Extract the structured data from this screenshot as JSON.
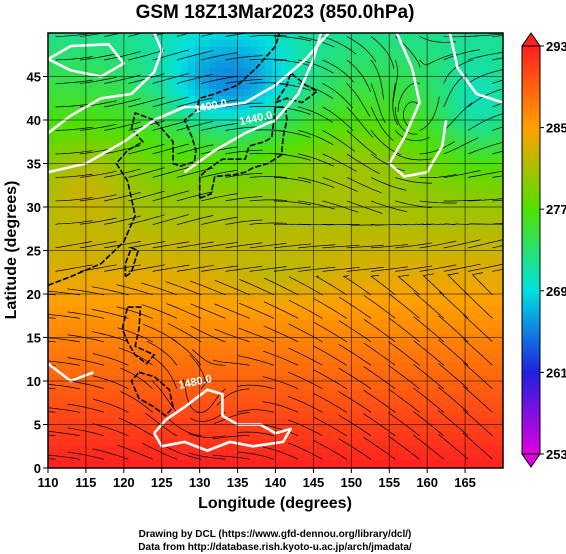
{
  "chart_data": {
    "type": "heatmap",
    "title": "GSM 18Z13Mar2023 (850.0hPa)",
    "xlabel": "Longitude (degrees)",
    "ylabel": "Latitude  (degrees)",
    "xlim": [
      110,
      170
    ],
    "ylim": [
      0,
      50
    ],
    "x_ticks": [
      110,
      115,
      120,
      125,
      130,
      135,
      140,
      145,
      150,
      155,
      160,
      165
    ],
    "y_ticks": [
      0,
      5,
      10,
      15,
      20,
      25,
      30,
      35,
      40,
      45
    ],
    "grid": true,
    "colorbar": {
      "position": "right",
      "min": 253,
      "max": 293,
      "tick_labels": [
        "293",
        "285",
        "277",
        "269",
        "261",
        "253"
      ],
      "tick_values": [
        293,
        285,
        277,
        269,
        261,
        253
      ]
    },
    "contour_labels": [
      {
        "text": "1400.0",
        "lon": 131.5,
        "lat": 41.2
      },
      {
        "text": "1440.0",
        "lon": 137.5,
        "lat": 39.8
      },
      {
        "text": "1480.0",
        "lon": 129.5,
        "lat": 9.5
      }
    ],
    "footer": [
      "Drawing by DCL (https://www.gfd-dennou.org/library/dcl/)",
      "Data from http://database.rish.kyoto-u.ac.jp/arch/jmadata/"
    ]
  }
}
